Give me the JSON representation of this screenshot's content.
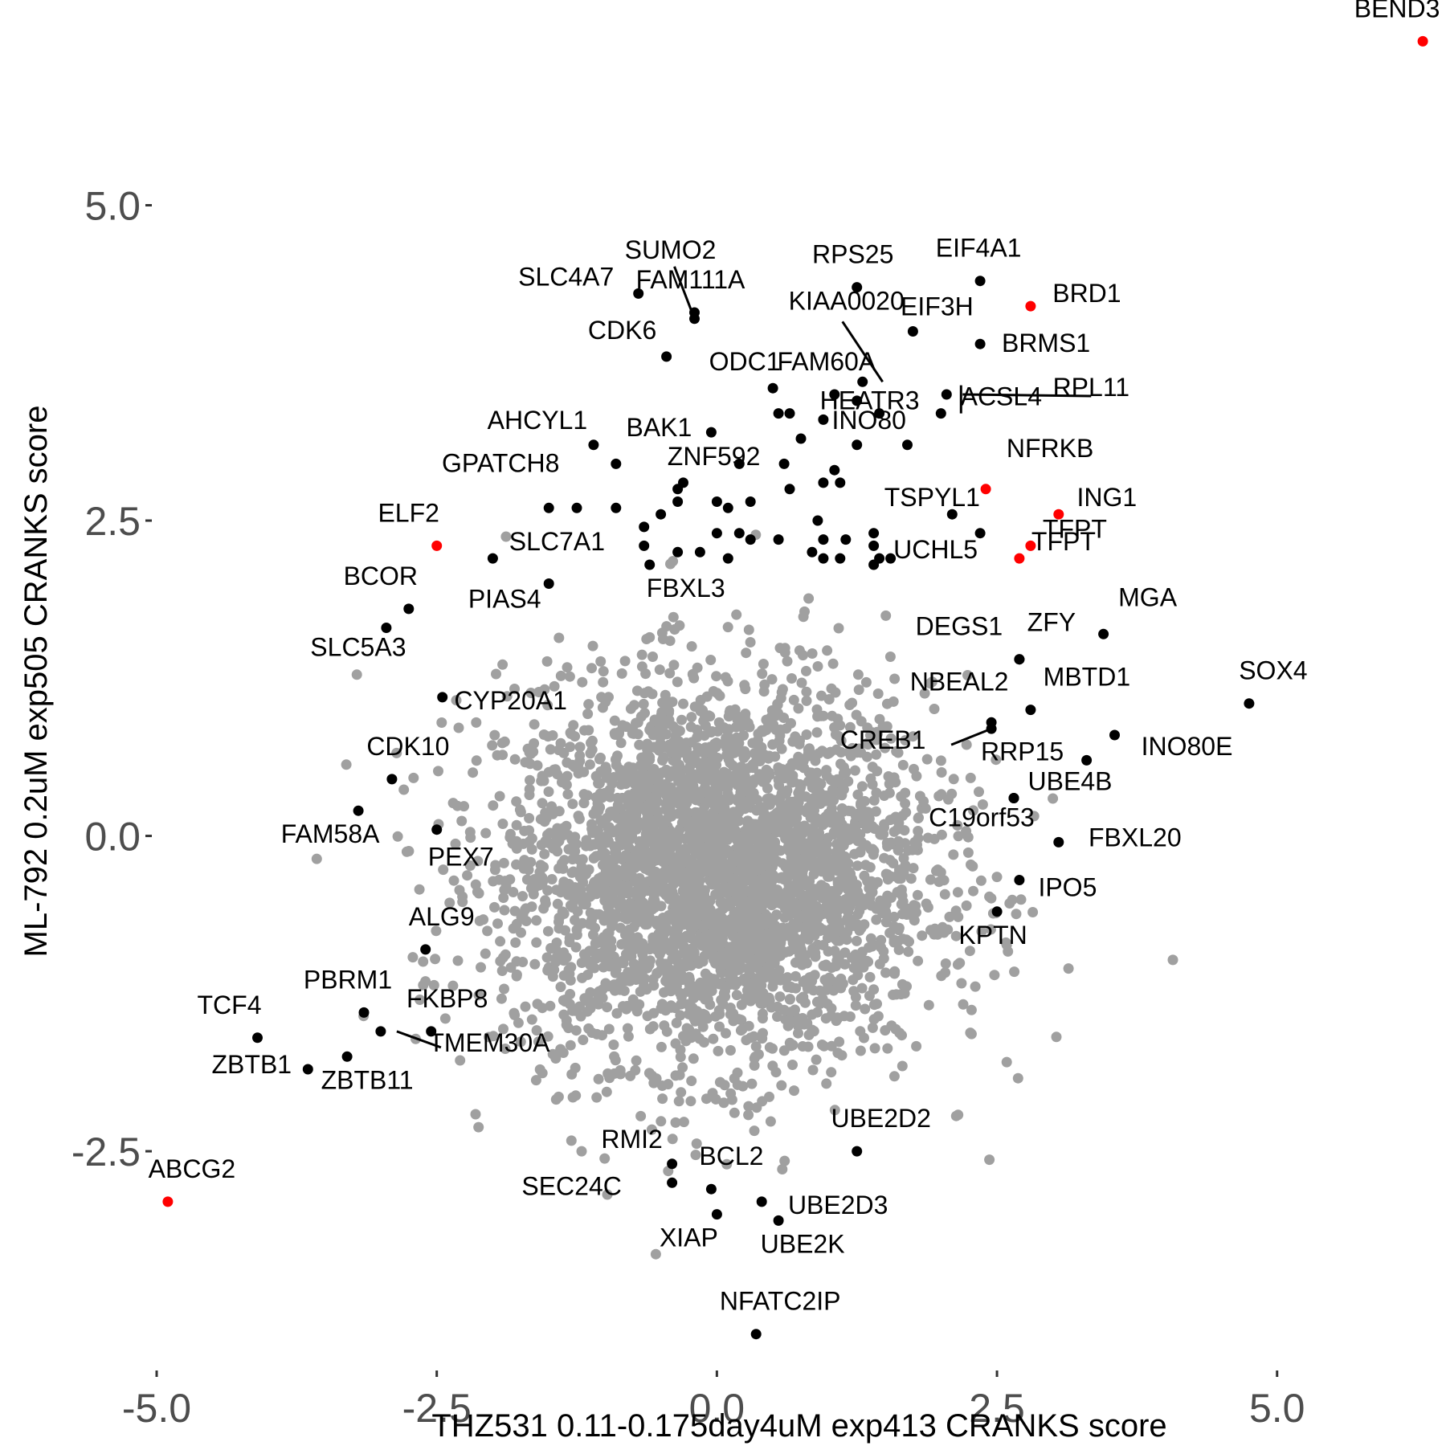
{
  "chart_data": {
    "type": "scatter",
    "title": "",
    "xlabel": "THZ531 0.11-0.175day4uM exp413 CRANKS score",
    "ylabel": "ML-792 0.2uM exp505 CRANKS score",
    "xlim": [
      -5.0,
      6.4
    ],
    "ylim": [
      -4.2,
      6.5
    ],
    "x_ticks": [
      "-5.0",
      "-2.5",
      "0.0",
      "2.5",
      "5.0"
    ],
    "y_ticks": [
      "-2.5",
      "0.0",
      "2.5",
      "5.0"
    ],
    "grid": false,
    "legend": "none",
    "colors": {
      "background": "#ebebeb",
      "highlight": "#ff0000",
      "labeled": "#000000",
      "other": "#a0a0a0"
    },
    "background_cloud": {
      "color": "#a0a0a0",
      "center": [
        0.0,
        -0.3
      ],
      "sd": [
        0.95,
        0.75
      ],
      "count": 3500
    },
    "series": [
      {
        "color": "#ff0000",
        "points": [
          {
            "label": "BEND3",
            "x": 6.3,
            "y": 6.3
          },
          {
            "label": "BRD1",
            "x": 2.8,
            "y": 4.2
          },
          {
            "label": "NFRKB",
            "x": 2.4,
            "y": 2.75
          },
          {
            "label": "ING1",
            "x": 3.05,
            "y": 2.55
          },
          {
            "label": "TFPT",
            "x": 2.8,
            "y": 2.3
          },
          {
            "label": "TFPT",
            "x": 2.7,
            "y": 2.2
          },
          {
            "label": "ELF2",
            "x": -2.5,
            "y": 2.3
          },
          {
            "label": "ABCG2",
            "x": -4.9,
            "y": -2.9
          }
        ]
      },
      {
        "color": "#000000",
        "points": [
          {
            "label": "SUMO2",
            "x": -0.2,
            "y": 4.1
          },
          {
            "label": "FAM111A",
            "x": -0.2,
            "y": 4.15
          },
          {
            "label": "SLC4A7",
            "x": -0.7,
            "y": 4.3
          },
          {
            "label": "CDK6",
            "x": -0.45,
            "y": 3.8
          },
          {
            "label": "RPS25",
            "x": 1.25,
            "y": 4.35
          },
          {
            "label": "EIF4A1",
            "x": 2.35,
            "y": 4.4
          },
          {
            "label": "EIF3H",
            "x": 1.75,
            "y": 4.0
          },
          {
            "label": "BRMS1",
            "x": 2.35,
            "y": 3.9
          },
          {
            "label": "KIAA0020",
            "x": 1.3,
            "y": 3.6
          },
          {
            "label": "ODC1",
            "x": 0.5,
            "y": 3.55
          },
          {
            "label": "FAM60A",
            "x": 1.05,
            "y": 3.5
          },
          {
            "label": "HEATR3",
            "x": 1.45,
            "y": 3.35
          },
          {
            "label": "ACSL4",
            "x": 2.0,
            "y": 3.35
          },
          {
            "label": "RPL11",
            "x": 2.05,
            "y": 3.5
          },
          {
            "label": "BAK1",
            "x": -0.05,
            "y": 3.2
          },
          {
            "label": "AHCYL1",
            "x": -1.1,
            "y": 3.1
          },
          {
            "label": "INO80",
            "x": 1.25,
            "y": 3.1
          },
          {
            "label": "GPATCH8",
            "x": -1.5,
            "y": 2.6
          },
          {
            "label": "ZNF592",
            "x": -0.35,
            "y": 2.75
          },
          {
            "label": "TSPYL1",
            "x": 2.1,
            "y": 2.55
          },
          {
            "label": "SLC7A1",
            "x": -2.0,
            "y": 2.2
          },
          {
            "label": "PIAS4",
            "x": -1.5,
            "y": 2.0
          },
          {
            "label": "FBXL3",
            "x": -0.6,
            "y": 2.15
          },
          {
            "label": "UCHL5",
            "x": 1.45,
            "y": 2.2
          },
          {
            "label": "BCOR",
            "x": -2.75,
            "y": 1.8
          },
          {
            "label": "SLC5A3",
            "x": -2.95,
            "y": 1.65
          },
          {
            "label": "ZFY",
            "x": 2.7,
            "y": 1.4
          },
          {
            "label": "MGA",
            "x": 3.45,
            "y": 1.6
          },
          {
            "label": "DEGS1",
            "x": 2.7,
            "y": 1.4
          },
          {
            "label": "CYP20A1",
            "x": -2.45,
            "y": 1.1
          },
          {
            "label": "MBTD1",
            "x": 2.8,
            "y": 1.0
          },
          {
            "label": "SOX4",
            "x": 4.75,
            "y": 1.05
          },
          {
            "label": "NBEAL2",
            "x": 2.45,
            "y": 0.9
          },
          {
            "label": "CREB1",
            "x": 2.45,
            "y": 0.85
          },
          {
            "label": "INO80E",
            "x": 3.55,
            "y": 0.8
          },
          {
            "label": "RRP15",
            "x": 3.3,
            "y": 0.6
          },
          {
            "label": "CDK10",
            "x": -2.9,
            "y": 0.45
          },
          {
            "label": "UBE4B",
            "x": 2.65,
            "y": 0.3
          },
          {
            "label": "FAM58A",
            "x": -3.2,
            "y": 0.2
          },
          {
            "label": "PEX7",
            "x": -2.5,
            "y": 0.05
          },
          {
            "label": "C19orf53",
            "x": 2.65,
            "y": 0.3
          },
          {
            "label": "FBXL20",
            "x": 3.05,
            "y": -0.05
          },
          {
            "label": "IPO5",
            "x": 2.7,
            "y": -0.35
          },
          {
            "label": "KPTN",
            "x": 2.5,
            "y": -0.6
          },
          {
            "label": "ALG9",
            "x": -2.6,
            "y": -0.9
          },
          {
            "label": "TCF4",
            "x": -4.1,
            "y": -1.6
          },
          {
            "label": "PBRM1",
            "x": -3.15,
            "y": -1.4
          },
          {
            "label": "FKBP8",
            "x": -2.55,
            "y": -1.55
          },
          {
            "label": "ZBTB1",
            "x": -3.65,
            "y": -1.85
          },
          {
            "label": "TMEM30A",
            "x": -3.0,
            "y": -1.55
          },
          {
            "label": "ZBTB11",
            "x": -3.3,
            "y": -1.75
          },
          {
            "label": "RMI2",
            "x": -0.4,
            "y": -2.6
          },
          {
            "label": "UBE2D2",
            "x": 1.25,
            "y": -2.5
          },
          {
            "label": "BCL2",
            "x": -0.05,
            "y": -2.8
          },
          {
            "label": "SEC24C",
            "x": -0.4,
            "y": -2.75
          },
          {
            "label": "UBE2D3",
            "x": 0.4,
            "y": -2.9
          },
          {
            "label": "XIAP",
            "x": 0.0,
            "y": -3.0
          },
          {
            "label": "UBE2K",
            "x": 0.55,
            "y": -3.05
          },
          {
            "label": "NFATC2IP",
            "x": 0.35,
            "y": -3.95
          }
        ]
      },
      {
        "color": "#000000",
        "points": [
          {
            "x": 0.55,
            "y": 3.35
          },
          {
            "x": 0.65,
            "y": 3.35
          },
          {
            "x": 0.75,
            "y": 3.15
          },
          {
            "x": 0.95,
            "y": 3.3
          },
          {
            "x": 1.05,
            "y": 2.9
          },
          {
            "x": 0.6,
            "y": 2.95
          },
          {
            "x": 0.2,
            "y": 2.95
          },
          {
            "x": -0.9,
            "y": 2.95
          },
          {
            "x": -0.3,
            "y": 2.8
          },
          {
            "x": -0.35,
            "y": 2.65
          },
          {
            "x": 0.0,
            "y": 2.65
          },
          {
            "x": 0.3,
            "y": 2.65
          },
          {
            "x": 0.65,
            "y": 2.75
          },
          {
            "x": 0.95,
            "y": 2.8
          },
          {
            "x": 1.1,
            "y": 2.8
          },
          {
            "x": -0.9,
            "y": 2.6
          },
          {
            "x": -1.25,
            "y": 2.6
          },
          {
            "x": 0.1,
            "y": 2.6
          },
          {
            "x": -0.5,
            "y": 2.55
          },
          {
            "x": 0.2,
            "y": 2.4
          },
          {
            "x": 0.9,
            "y": 2.5
          },
          {
            "x": -0.65,
            "y": 2.45
          },
          {
            "x": 0.0,
            "y": 2.4
          },
          {
            "x": 0.3,
            "y": 2.35
          },
          {
            "x": 0.55,
            "y": 2.35
          },
          {
            "x": 0.95,
            "y": 2.35
          },
          {
            "x": 1.15,
            "y": 2.35
          },
          {
            "x": 1.4,
            "y": 2.4
          },
          {
            "x": 2.35,
            "y": 2.4
          },
          {
            "x": -0.65,
            "y": 2.3
          },
          {
            "x": -0.15,
            "y": 2.25
          },
          {
            "x": -0.35,
            "y": 2.25
          },
          {
            "x": 0.85,
            "y": 2.25
          },
          {
            "x": 1.4,
            "y": 2.3
          },
          {
            "x": 1.55,
            "y": 2.2
          },
          {
            "x": 1.4,
            "y": 2.15
          },
          {
            "x": 0.95,
            "y": 2.2
          },
          {
            "x": 0.1,
            "y": 2.2
          },
          {
            "x": 1.25,
            "y": 3.45
          },
          {
            "x": 1.1,
            "y": 2.2
          },
          {
            "x": 1.7,
            "y": 3.1
          }
        ]
      }
    ]
  }
}
